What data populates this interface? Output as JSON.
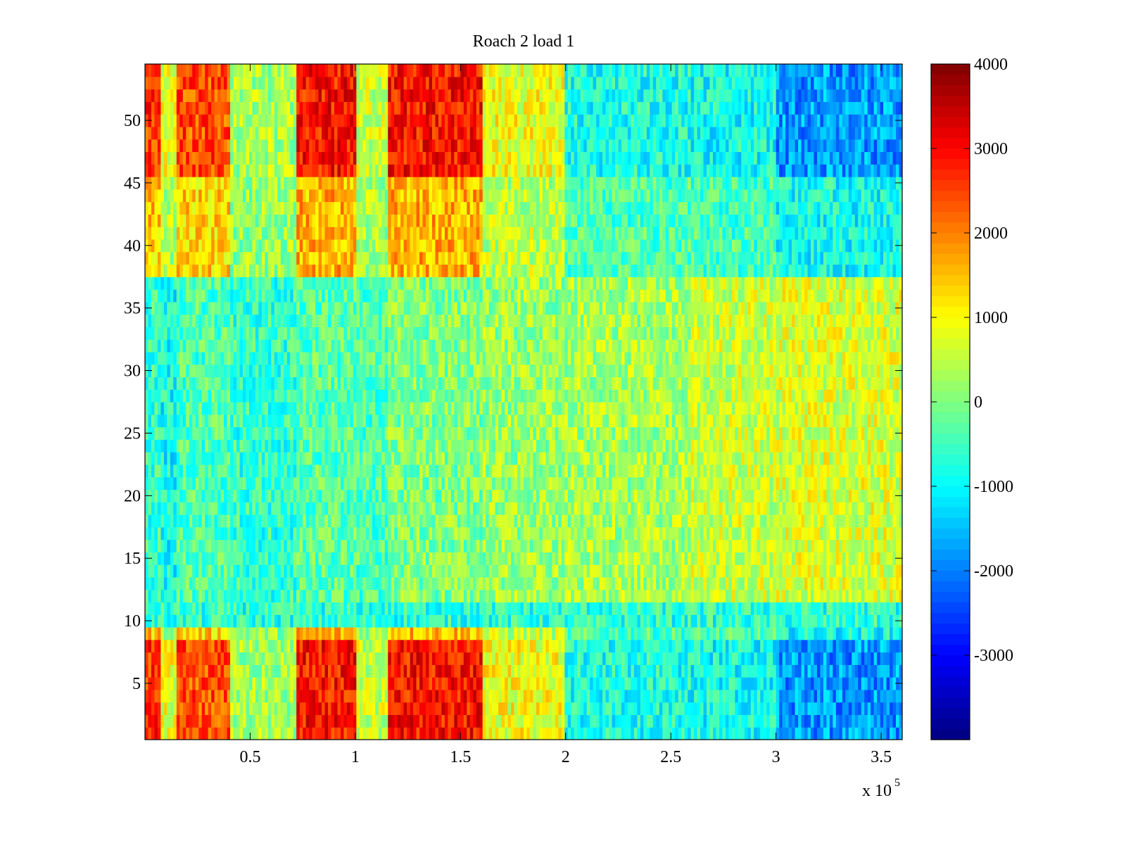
{
  "chart_data": {
    "type": "heatmap",
    "title": "Roach 2 load 1",
    "xlabel": "",
    "ylabel": "",
    "x_exponent_label": {
      "prefix": "x 10",
      "exponent": "5"
    },
    "xlim": [
      0,
      3.6
    ],
    "ylim": [
      0.5,
      54.5
    ],
    "x_ticks": [
      0.5,
      1,
      1.5,
      2,
      2.5,
      3,
      3.5
    ],
    "x_tick_labels": [
      "0.5",
      "1",
      "1.5",
      "2",
      "2.5",
      "3",
      "3.5"
    ],
    "y_ticks": [
      5,
      10,
      15,
      20,
      25,
      30,
      35,
      40,
      45,
      50
    ],
    "y_tick_labels": [
      "5",
      "10",
      "15",
      "20",
      "25",
      "30",
      "35",
      "40",
      "45",
      "50"
    ],
    "rows": 54,
    "colormap": "jet",
    "clim": [
      -4000,
      4000
    ],
    "colorbar": {
      "ticks": [
        4000,
        3000,
        2000,
        1000,
        0,
        -1000,
        -2000,
        -3000
      ],
      "tick_labels": [
        "4000",
        "3000",
        "2000",
        "1000",
        "0",
        "-1000",
        "-2000",
        "-3000"
      ]
    },
    "column_bands": [
      {
        "x_range": [
          0,
          0.08
        ],
        "hot_rows_value": 2600,
        "mid_rows_value": -600
      },
      {
        "x_range": [
          0.08,
          0.15
        ],
        "hot_rows_value": 800,
        "mid_rows_value": -900
      },
      {
        "x_range": [
          0.15,
          0.4
        ],
        "hot_rows_value": 2400,
        "mid_rows_value": -400
      },
      {
        "x_range": [
          0.4,
          0.72
        ],
        "hot_rows_value": 300,
        "mid_rows_value": -600
      },
      {
        "x_range": [
          0.72,
          1.0
        ],
        "hot_rows_value": 2900,
        "mid_rows_value": -300
      },
      {
        "x_range": [
          1.0,
          1.15
        ],
        "hot_rows_value": 600,
        "mid_rows_value": -400
      },
      {
        "x_range": [
          1.15,
          1.6
        ],
        "hot_rows_value": 2900,
        "mid_rows_value": 0
      },
      {
        "x_range": [
          1.6,
          2.0
        ],
        "hot_rows_value": 900,
        "mid_rows_value": 200
      },
      {
        "x_range": [
          2.0,
          2.6
        ],
        "hot_rows_value": -800,
        "mid_rows_value": 300
      },
      {
        "x_range": [
          2.6,
          3.0
        ],
        "hot_rows_value": -900,
        "mid_rows_value": 600
      },
      {
        "x_range": [
          3.0,
          3.6
        ],
        "hot_rows_value": -1800,
        "mid_rows_value": 700
      }
    ]
  }
}
